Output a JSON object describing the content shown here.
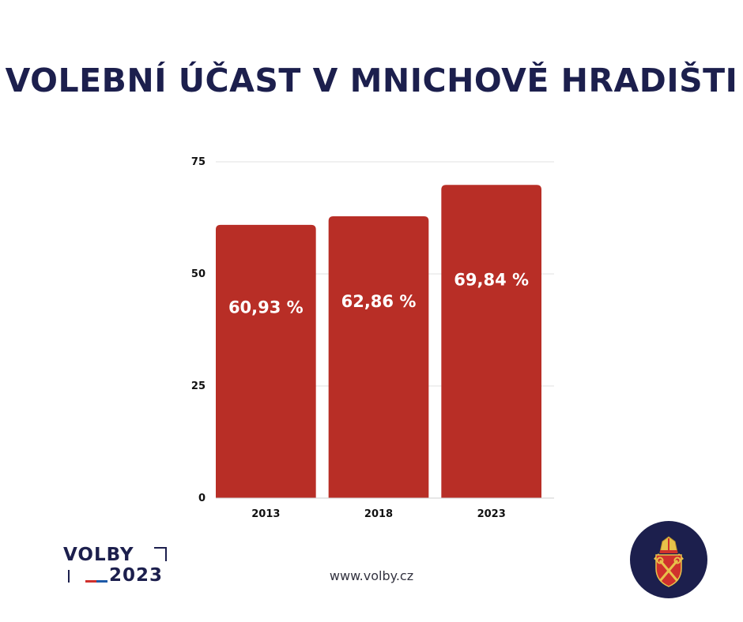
{
  "title": "VOLEBNÍ ÚČAST V MNICHOVĚ HRADIŠTI",
  "footer": {
    "url": "www.volby.cz",
    "logo_top": "VOLBY",
    "logo_bottom": "2023"
  },
  "colors": {
    "bar": "#b82e26",
    "title": "#1c1f4d",
    "gridline": "#e2e2e2",
    "emblem_bg": "#1c1f4d",
    "logo_red": "#d0312d",
    "logo_blue": "#1e5aa8"
  },
  "chart_data": {
    "type": "bar",
    "categories": [
      "2013",
      "2018",
      "2023"
    ],
    "values": [
      60.93,
      62.86,
      69.84
    ],
    "data_labels": [
      "60,93 %",
      "62,86 %",
      "69,84 %"
    ],
    "ylim": [
      0,
      75
    ],
    "yticks": [
      0,
      25,
      50,
      75
    ],
    "grid": true,
    "legend": "none"
  }
}
